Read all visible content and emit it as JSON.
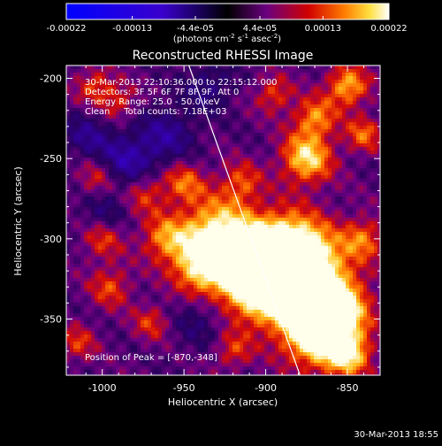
{
  "colorbar": {
    "tick_labels": [
      "-0.00022",
      "-0.00013",
      "-4.4e-05",
      "4.4e-05",
      "0.00013",
      "0.00022"
    ],
    "tick_values": [
      -0.00022,
      -0.00013,
      -4.4e-05,
      4.4e-05,
      0.00013,
      0.00022
    ],
    "range": [
      -0.00022,
      0.00022
    ],
    "unit_parts": [
      "(photons cm",
      "-2",
      " s",
      "-1",
      " asec",
      "-2",
      ")"
    ]
  },
  "plot": {
    "title": "Reconstructed RHESSI Image",
    "annotations": [
      "30-Mar-2013 22:10:36.000 to 22:15:12.000",
      "Detectors: 3F 5F 6F 7F 8F 9F, Att 0",
      "Energy Range: 25.0 - 50.0 keV",
      "Clean     Total counts: 7.18E+03"
    ],
    "peak_label": "Position of Peak = [-870,-348]"
  },
  "footer": {
    "timestamp": "30-Mar-2013 18:55"
  },
  "chart_data": {
    "type": "heatmap",
    "title": "Reconstructed RHESSI Image",
    "xlabel": "Heliocentric X (arcsec)",
    "ylabel": "Heliocentric Y (arcsec)",
    "xlim": [
      -1022,
      -830
    ],
    "ylim": [
      -385,
      -192
    ],
    "x_ticks": [
      -1000,
      -950,
      -900,
      -850
    ],
    "x_tick_labels": [
      "-1000",
      "-950",
      "-900",
      "-850"
    ],
    "y_ticks": [
      -200,
      -250,
      -300,
      -350
    ],
    "y_tick_labels": [
      "-200",
      "-250",
      "-300",
      "-350"
    ],
    "grid": false,
    "colormap": "RHESSI (blue-purple-red-yellow-white)",
    "peak": [
      -870,
      -348
    ],
    "limb_line": {
      "points": [
        [
          -947,
          -192
        ],
        [
          -879,
          -385
        ]
      ],
      "color": "#ffffff"
    },
    "sources": [
      {
        "x": -880,
        "y": -320,
        "intensity": 1.0,
        "width": 20
      },
      {
        "x": -905,
        "y": -325,
        "intensity": 0.95,
        "width": 18
      },
      {
        "x": -930,
        "y": -298,
        "intensity": 0.85,
        "width": 16
      },
      {
        "x": -890,
        "y": -312,
        "intensity": 0.9,
        "width": 16
      },
      {
        "x": -858,
        "y": -345,
        "intensity": 0.9,
        "width": 14
      },
      {
        "x": -870,
        "y": -360,
        "intensity": 0.85,
        "width": 14
      },
      {
        "x": -940,
        "y": -318,
        "intensity": 0.6,
        "width": 12
      },
      {
        "x": -962,
        "y": -300,
        "intensity": 0.5,
        "width": 10
      },
      {
        "x": -975,
        "y": -270,
        "intensity": 0.5,
        "width": 10
      },
      {
        "x": -950,
        "y": -265,
        "intensity": 0.45,
        "width": 9
      },
      {
        "x": -915,
        "y": -265,
        "intensity": 0.4,
        "width": 9
      },
      {
        "x": -875,
        "y": -250,
        "intensity": 0.75,
        "width": 11
      },
      {
        "x": -870,
        "y": -225,
        "intensity": 0.55,
        "width": 9
      },
      {
        "x": -850,
        "y": -205,
        "intensity": 0.65,
        "width": 9
      },
      {
        "x": -840,
        "y": -235,
        "intensity": 0.45,
        "width": 8
      },
      {
        "x": -895,
        "y": -210,
        "intensity": 0.4,
        "width": 8
      },
      {
        "x": -1002,
        "y": -262,
        "intensity": 0.45,
        "width": 9
      },
      {
        "x": -1000,
        "y": -300,
        "intensity": 0.4,
        "width": 9
      },
      {
        "x": -995,
        "y": -330,
        "intensity": 0.4,
        "width": 9
      },
      {
        "x": -1005,
        "y": -205,
        "intensity": 0.4,
        "width": 8
      },
      {
        "x": -990,
        "y": -215,
        "intensity": 0.35,
        "width": 8
      },
      {
        "x": -1015,
        "y": -365,
        "intensity": 0.35,
        "width": 8
      },
      {
        "x": -970,
        "y": -352,
        "intensity": 0.35,
        "width": 8
      },
      {
        "x": -850,
        "y": -372,
        "intensity": 0.7,
        "width": 10
      },
      {
        "x": -840,
        "y": -300,
        "intensity": 0.45,
        "width": 9
      },
      {
        "x": -920,
        "y": -370,
        "intensity": 0.35,
        "width": 8
      }
    ],
    "negative_regions": [
      {
        "x": -985,
        "y": -255,
        "intensity": 0.55,
        "width": 14
      },
      {
        "x": -960,
        "y": -235,
        "intensity": 0.35,
        "width": 12
      },
      {
        "x": -1010,
        "y": -235,
        "intensity": 0.3,
        "width": 10
      },
      {
        "x": -1000,
        "y": -285,
        "intensity": 0.25,
        "width": 10
      },
      {
        "x": -940,
        "y": -350,
        "intensity": 0.25,
        "width": 12
      },
      {
        "x": -935,
        "y": -205,
        "intensity": 0.3,
        "width": 10
      }
    ]
  }
}
